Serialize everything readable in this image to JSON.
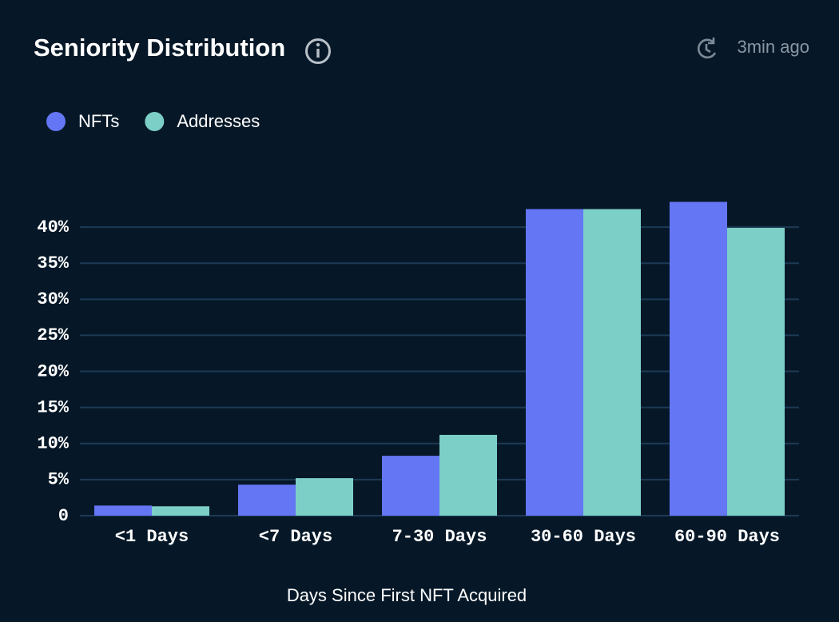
{
  "chart_data": {
    "type": "bar",
    "title": "Seniority Distribution",
    "updated": "3min ago",
    "x_label": "Days Since First NFT Acquired",
    "categories": [
      "<1 Days",
      "<7 Days",
      "7-30 Days",
      "30-60 Days",
      "60-90 Days"
    ],
    "series": [
      {
        "name": "NFTs",
        "color": "#6476f4",
        "values": [
          1.4,
          4.3,
          8.3,
          42.5,
          43.5
        ]
      },
      {
        "name": "Addresses",
        "color": "#7ccfc7",
        "values": [
          1.3,
          5.2,
          11.2,
          42.5,
          39.9
        ]
      }
    ],
    "ylim": [
      0,
      44
    ],
    "yticks": [
      0,
      {
        "value": 5,
        "label": "5%"
      },
      {
        "value": 10,
        "label": "10%"
      },
      {
        "value": 15,
        "label": "15%"
      },
      {
        "value": 20,
        "label": "20%"
      },
      {
        "value": 25,
        "label": "25%"
      },
      {
        "value": 30,
        "label": "30%"
      },
      {
        "value": 35,
        "label": "35%"
      },
      {
        "value": 40,
        "label": "40%"
      }
    ],
    "grid": true,
    "legend": "top-left"
  }
}
